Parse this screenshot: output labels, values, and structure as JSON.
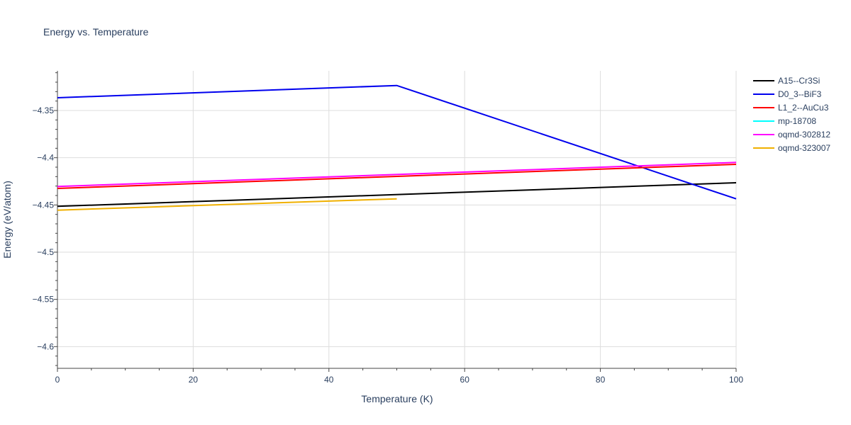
{
  "chart_data": {
    "type": "line",
    "title": "Energy vs. Temperature",
    "xlabel": "Temperature (K)",
    "ylabel": "Energy (eV/atom)",
    "xlim": [
      0,
      100
    ],
    "ylim": [
      -4.623,
      -4.308
    ],
    "x_ticks": [
      0,
      20,
      40,
      60,
      80,
      100
    ],
    "y_ticks": [
      -4.35,
      -4.4,
      -4.45,
      -4.5,
      -4.55,
      -4.6
    ],
    "x_tick_labels": [
      "0",
      "20",
      "40",
      "60",
      "80",
      "100"
    ],
    "y_tick_labels": [
      "−4.35",
      "−4.4",
      "−4.45",
      "−4.5",
      "−4.55",
      "−4.6"
    ],
    "grid": true,
    "legend_position": "right",
    "series": [
      {
        "name": "A15--Cr3Si",
        "color": "#000000",
        "x": [
          0,
          100
        ],
        "y": [
          -4.4515,
          -4.4265
        ]
      },
      {
        "name": "D0_3--BiF3",
        "color": "#0000ee",
        "x": [
          0,
          50,
          100
        ],
        "y": [
          -4.3365,
          -4.3235,
          -4.4435
        ]
      },
      {
        "name": "L1_2--AuCu3",
        "color": "#ff0000",
        "x": [
          0,
          100
        ],
        "y": [
          -4.4325,
          -4.407
        ]
      },
      {
        "name": "mp-18708",
        "color": "#00ffff",
        "x": [],
        "y": []
      },
      {
        "name": "oqmd-302812",
        "color": "#ff00ff",
        "x": [
          0,
          100
        ],
        "y": [
          -4.4305,
          -4.405
        ]
      },
      {
        "name": "oqmd-323007",
        "color": "#f0b000",
        "x": [
          0,
          50
        ],
        "y": [
          -4.4555,
          -4.4435
        ]
      }
    ]
  }
}
